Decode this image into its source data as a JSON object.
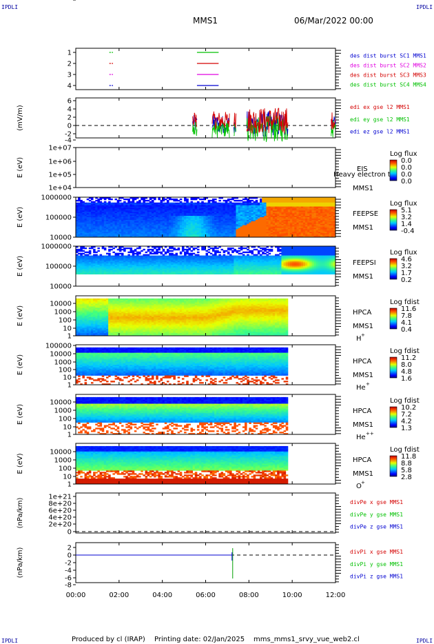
{
  "header": {
    "corner_left_top": "IPDLI",
    "corner_right_top": "IPDLI",
    "title": "MMS1",
    "datetime": "06/Mar/2022 00:00",
    "corner_left_bottom": "IPDLI",
    "corner_right_bottom": "IPDLI"
  },
  "footer": {
    "producer": "Produced by cl (IRAP)",
    "printing": "Printing date: 02/Jan/2025",
    "file": "mms_mms1_srvy_vue_web2.cl"
  },
  "colors": {
    "red": "#d40000",
    "magenta": "#e000e0",
    "green": "#00c000",
    "blue": "#0000d0"
  },
  "chart_data": [
    {
      "type": "line",
      "id": "burst",
      "ylim": [
        0.5,
        4.5
      ],
      "yticks": [
        "1",
        "2",
        "3",
        "4"
      ],
      "legend": [
        {
          "text": "des dist burst SC1 MMS1",
          "color": "#0000d0"
        },
        {
          "text": "des dist burst SC2 MMS2",
          "color": "#e000e0"
        },
        {
          "text": "des dist burst SC3 MMS3",
          "color": "#d40000"
        },
        {
          "text": "des dist burst SC4 MMS4",
          "color": "#00c000"
        }
      ],
      "series": [
        {
          "level": 4,
          "color": "#00c000",
          "intervals": [
            [
              1.55,
              1.62
            ],
            [
              1.66,
              1.72
            ],
            [
              5.6,
              6.6
            ]
          ]
        },
        {
          "level": 3,
          "color": "#d40000",
          "intervals": [
            [
              1.55,
              1.62
            ],
            [
              1.66,
              1.72
            ],
            [
              5.6,
              6.6
            ]
          ]
        },
        {
          "level": 2,
          "color": "#e000e0",
          "intervals": [
            [
              1.55,
              1.62
            ],
            [
              1.66,
              1.72
            ],
            [
              5.6,
              6.6
            ]
          ]
        },
        {
          "level": 1,
          "color": "#0000d0",
          "intervals": [
            [
              1.55,
              1.62
            ],
            [
              1.66,
              1.72
            ],
            [
              5.6,
              6.6
            ]
          ]
        }
      ]
    },
    {
      "type": "line",
      "id": "edi",
      "ylabel": "(mV/m)",
      "ylim": [
        -7,
        6.5
      ],
      "yticks": [
        "6",
        "4",
        "2",
        "0",
        "-2",
        "-4",
        "-6"
      ],
      "legend": [
        {
          "text": "edi ex gse l2 MMS1",
          "color": "#d40000"
        },
        {
          "text": "edi ey gse l2 MMS1",
          "color": "#00c000"
        },
        {
          "text": "edi ez gse l2 MMS1",
          "color": "#0000d0"
        }
      ],
      "segments": [
        [
          5.4,
          5.6
        ],
        [
          6.3,
          7.1
        ],
        [
          7.3,
          7.4
        ],
        [
          7.9,
          9.8
        ],
        [
          11.8,
          12.0
        ]
      ]
    },
    {
      "type": "heatmap",
      "id": "eis",
      "ylabel": "E (eV)",
      "yticks": [
        "1e+07",
        "1e+06",
        "1e+05",
        "1e+04"
      ],
      "label": "EIS",
      "overlay": "Heavy electron to",
      "sc": "MMS1",
      "cbar_title": "Log flux",
      "cbar_ticks": [
        "0.0",
        "0.0",
        "0.0",
        "0.0"
      ]
    },
    {
      "type": "heatmap",
      "id": "feepse",
      "ylabel": "E (eV)",
      "yticks": [
        "1000000",
        "100000",
        "10000"
      ],
      "label": "FEEPSE",
      "sc": "MMS1",
      "cbar_title": "Log flux",
      "cbar_ticks": [
        "5.1",
        "3.2",
        "1.4",
        "-0.4"
      ]
    },
    {
      "type": "heatmap",
      "id": "feepsi",
      "ylabel": "E (eV)",
      "yticks": [
        "1000000",
        "100000",
        "10000"
      ],
      "label": "FEEPSI",
      "sc": "MMS1",
      "cbar_title": "Log flux",
      "cbar_ticks": [
        "4.6",
        "3.2",
        "1.7",
        "0.2"
      ]
    },
    {
      "type": "heatmap",
      "id": "hpca_h",
      "ylabel": "E (eV)",
      "yticks": [
        "10000",
        "1000",
        "100",
        "10",
        "1"
      ],
      "label": "HPCA",
      "sc": "MMS1",
      "species": "H",
      "species_sup": "+",
      "cbar_title": "Log fdist",
      "cbar_ticks": [
        "11.6",
        "7.8",
        "4.1",
        "0.4"
      ]
    },
    {
      "type": "heatmap",
      "id": "hpca_he",
      "ylabel": "E (eV)",
      "yticks": [
        "100000",
        "10000",
        "1000",
        "100",
        "10",
        "1"
      ],
      "label": "HPCA",
      "sc": "MMS1",
      "species": "He",
      "species_sup": "+",
      "cbar_title": "Log fdist",
      "cbar_ticks": [
        "11.2",
        "8.0",
        "4.8",
        "1.6"
      ]
    },
    {
      "type": "heatmap",
      "id": "hpca_hepp",
      "ylabel": "E (eV)",
      "yticks": [
        "10000",
        "1000",
        "100",
        "10",
        "1"
      ],
      "label": "HPCA",
      "sc": "MMS1",
      "species": "He",
      "species_sup": "++",
      "cbar_title": "Log fdist",
      "cbar_ticks": [
        "10.2",
        "7.2",
        "4.2",
        "1.3"
      ]
    },
    {
      "type": "heatmap",
      "id": "hpca_o",
      "ylabel": "E (eV)",
      "yticks": [
        "10000",
        "1000",
        "100",
        "10",
        "1"
      ],
      "label": "HPCA",
      "sc": "MMS1",
      "species": "O",
      "species_sup": "+",
      "cbar_title": "Log fdist",
      "cbar_ticks": [
        "11.8",
        "8.8",
        "5.8",
        "2.8"
      ]
    },
    {
      "type": "line",
      "id": "divpe",
      "ylabel": "(nPa/km)",
      "yticks": [
        "1e+21",
        "8e+20",
        "6e+20",
        "4e+20",
        "2e+20",
        "0"
      ],
      "legend": [
        {
          "text": "divPe x gse MMS1",
          "color": "#d40000"
        },
        {
          "text": "divPe y gse MMS1",
          "color": "#00c000"
        },
        {
          "text": "divPe z gse MMS1",
          "color": "#0000d0"
        }
      ]
    },
    {
      "type": "line",
      "id": "divpi",
      "ylabel": "(nPa/km)",
      "yticks": [
        "2",
        "0",
        "-2",
        "-4",
        "-6",
        "-8"
      ],
      "legend": [
        {
          "text": "divPi x gse MMS1",
          "color": "#d40000"
        },
        {
          "text": "divPi y gse MMS1",
          "color": "#00c000"
        },
        {
          "text": "divPi z gse MMS1",
          "color": "#0000d0"
        }
      ],
      "spike_time": 7.25
    }
  ],
  "xaxis": {
    "range_hours": [
      0,
      12
    ],
    "ticks": [
      "00:00",
      "02:00",
      "04:00",
      "06:00",
      "08:00",
      "10:00",
      "12:00"
    ]
  }
}
